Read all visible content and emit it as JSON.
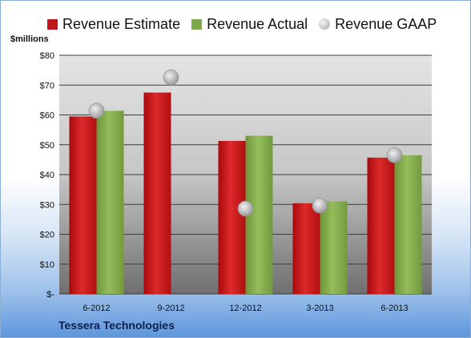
{
  "legend": {
    "estimate": "Revenue Estimate",
    "actual": "Revenue Actual",
    "gaap": "Revenue GAAP"
  },
  "units_label": "$millions",
  "company": "Tessera Technologies",
  "chart_data": {
    "type": "bar",
    "categories": [
      "6-2012",
      "9-2012",
      "12-2012",
      "3-2013",
      "6-2013"
    ],
    "series": [
      {
        "name": "Revenue Estimate",
        "type": "bar",
        "color": "#c0171a",
        "values": [
          59.5,
          67.5,
          51.3,
          30.4,
          45.7
        ]
      },
      {
        "name": "Revenue Actual",
        "type": "bar",
        "color": "#7fa84a",
        "values": [
          61.4,
          null,
          53.0,
          31.0,
          46.5
        ]
      },
      {
        "name": "Revenue GAAP",
        "type": "scatter",
        "color": "#b5b5b5",
        "values": [
          61.4,
          72.6,
          28.6,
          29.6,
          46.5
        ]
      }
    ],
    "ylim": [
      0,
      80
    ],
    "ytick_values": [
      0,
      10,
      20,
      30,
      40,
      50,
      60,
      70,
      80
    ],
    "ytick_labels": [
      "$-",
      "$10",
      "$20",
      "$30",
      "$40",
      "$50",
      "$60",
      "$70",
      "$80"
    ],
    "grid": true,
    "legend_position": "top"
  }
}
